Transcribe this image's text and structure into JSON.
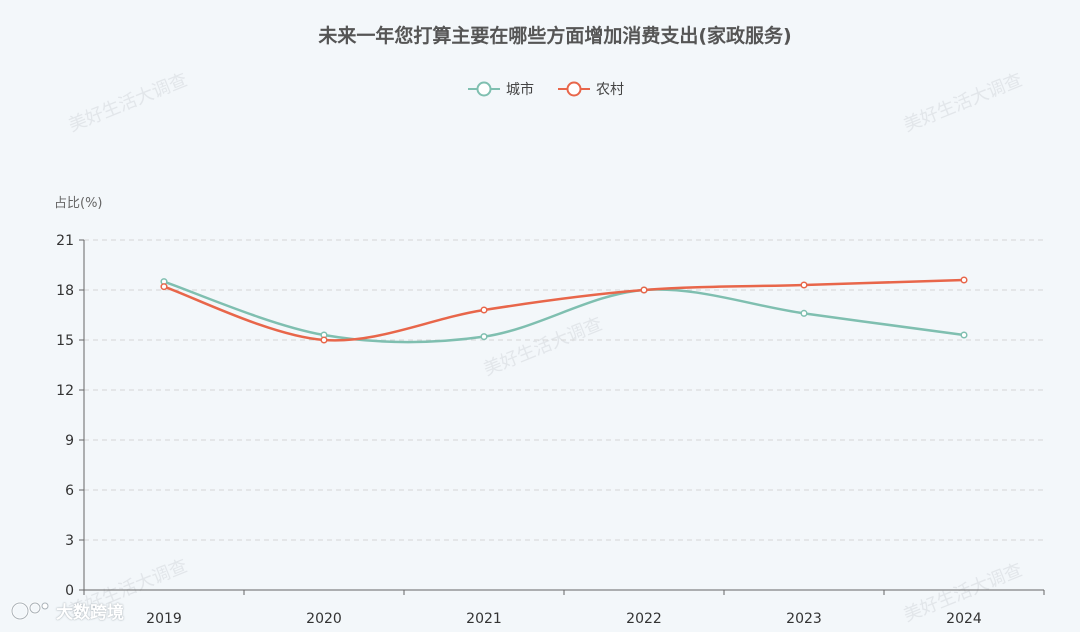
{
  "colors": {
    "city": "#7fbfb0",
    "rural": "#e8664a"
  },
  "watermark": "美好生活大调查",
  "source": "大数跨境",
  "chart_data": {
    "type": "line",
    "title": "未来一年您打算主要在哪些方面增加消费支出(家政服务)",
    "ylabel": "占比(%)",
    "xlabel": "",
    "x": [
      "2019",
      "2020",
      "2021",
      "2022",
      "2023",
      "2024"
    ],
    "ylim": [
      0,
      21
    ],
    "yticks": [
      0,
      3,
      6,
      9,
      12,
      15,
      18,
      21
    ],
    "grid": true,
    "smooth": true,
    "legend_position": "top-center",
    "series": [
      {
        "name": "城市",
        "color_key": "city",
        "values": [
          18.5,
          15.3,
          15.2,
          18.0,
          16.6,
          15.3
        ]
      },
      {
        "name": "农村",
        "color_key": "rural",
        "values": [
          18.2,
          15.0,
          16.8,
          18.0,
          18.3,
          18.6
        ]
      }
    ]
  }
}
